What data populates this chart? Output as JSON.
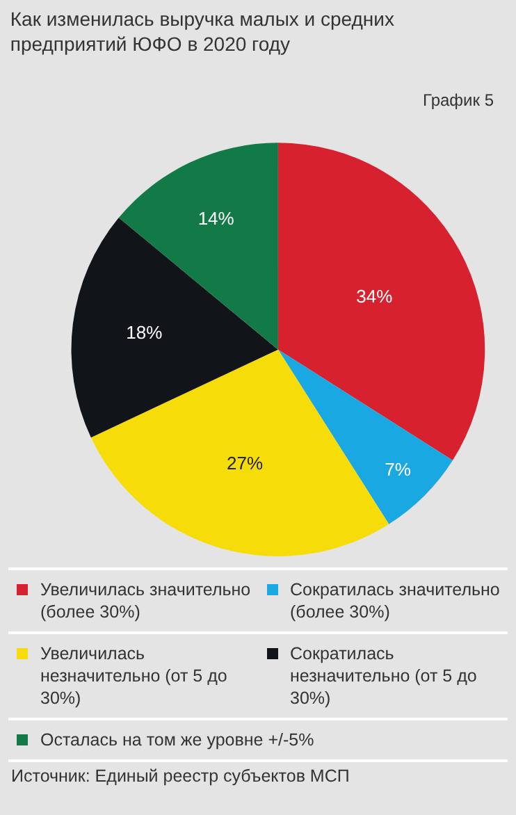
{
  "chart_data": {
    "type": "pie",
    "title": "Как изменилась выручка малых и средних предприятий ЮФО в 2020 году",
    "subtitle": "График 5",
    "categories": [
      "Увеличилась значительно (более 30%)",
      "Сократилась значительно (более 30%)",
      "Увеличилась незначительно (от 5 до 30%)",
      "Сократилась незначительно (от 5 до 30%)",
      "Осталась на том же уровне +/-5%"
    ],
    "values": [
      34,
      7,
      27,
      18,
      14
    ],
    "value_labels": [
      "34%",
      "7%",
      "27%",
      "18%",
      "14%"
    ],
    "colors": [
      "#d7212e",
      "#1aa8e2",
      "#f6dd0a",
      "#111418",
      "#127a47"
    ],
    "legend": "bottom",
    "annotations": [
      "Источник: Единый реестр субъектов МСП"
    ]
  }
}
